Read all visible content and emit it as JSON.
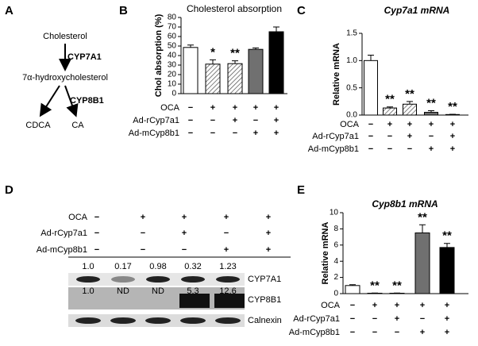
{
  "panel_a": {
    "letter": "A",
    "cholesterol": "Cholesterol",
    "enzyme1": "CYP7A1",
    "intermediate": "7α-hydroxycholesterol",
    "enzyme2": "CYP8B1",
    "product1": "CDCA",
    "product2": "CA"
  },
  "chart_data": [
    {
      "type": "bar",
      "panel": "B",
      "title": "Cholesterol absorption",
      "ylabel": "Chol absorption (%)",
      "categories": [
        null,
        null,
        null,
        null,
        null
      ],
      "values": [
        48.5,
        31,
        31.5,
        46.5,
        65
      ],
      "errors": [
        2.5,
        4.5,
        3,
        1.5,
        5
      ],
      "annotations": [
        null,
        "*",
        "**",
        null,
        null
      ],
      "fills": [
        "#ffffff",
        "hatch",
        "hatch",
        "#707070",
        "#000000"
      ],
      "ylim": [
        0,
        80
      ],
      "yticks": [
        0,
        10,
        20,
        30,
        40,
        50,
        60,
        70,
        80
      ],
      "conditions": [
        {
          "name": "OCA",
          "signs": [
            "−",
            "+",
            "+",
            "+",
            "+"
          ]
        },
        {
          "name": "Ad-rCyp7a1",
          "signs": [
            "−",
            "−",
            "+",
            "−",
            "+"
          ]
        },
        {
          "name": "Ad-mCyp8b1",
          "signs": [
            "−",
            "−",
            "−",
            "+",
            "+"
          ]
        }
      ]
    },
    {
      "type": "bar",
      "panel": "C",
      "title": "Cyp7a1 mRNA",
      "ylabel": "Relative mRNA",
      "categories": [
        null,
        null,
        null,
        null,
        null
      ],
      "values": [
        1.0,
        0.13,
        0.2,
        0.05,
        0.01
      ],
      "errors": [
        0.1,
        0.02,
        0.05,
        0.03,
        0.005
      ],
      "annotations": [
        null,
        "**",
        "**",
        "**",
        "**"
      ],
      "fills": [
        "#ffffff",
        "hatch",
        "hatch",
        "#707070",
        "#000000"
      ],
      "ylim": [
        0,
        1.5
      ],
      "yticks": [
        {
          "value": 0,
          "label": "0.0"
        },
        0.5,
        {
          "value": 1,
          "label": "1.0"
        },
        1.5
      ],
      "conditions": [
        {
          "name": "OCA",
          "signs": [
            "−",
            "+",
            "+",
            "+",
            "+"
          ]
        },
        {
          "name": "Ad-rCyp7a1",
          "signs": [
            "−",
            "−",
            "+",
            "−",
            "+"
          ]
        },
        {
          "name": "Ad-mCyp8b1",
          "signs": [
            "−",
            "−",
            "−",
            "+",
            "+"
          ]
        }
      ]
    },
    {
      "type": "bar",
      "panel": "E",
      "title": "Cyp8b1 mRNA",
      "ylabel": "Relative mRNA",
      "categories": [
        null,
        null,
        null,
        null,
        null
      ],
      "values": [
        1.0,
        0.05,
        0.05,
        7.5,
        5.7
      ],
      "errors": [
        0.1,
        0.02,
        0.02,
        1.0,
        0.5
      ],
      "annotations": [
        null,
        "**",
        "**",
        "**",
        "**"
      ],
      "fills": [
        "#ffffff",
        "hatch",
        "hatch",
        "#707070",
        "#000000"
      ],
      "ylim": [
        0,
        10
      ],
      "yticks": [
        0,
        2,
        4,
        6,
        8,
        10
      ],
      "conditions": [
        {
          "name": "OCA",
          "signs": [
            "−",
            "+",
            "+",
            "+",
            "+"
          ]
        },
        {
          "name": "Ad-rCyp7a1",
          "signs": [
            "−",
            "−",
            "+",
            "−",
            "+"
          ]
        },
        {
          "name": "Ad-mCyp8b1",
          "signs": [
            "−",
            "−",
            "−",
            "+",
            "+"
          ]
        }
      ]
    }
  ],
  "panel_d": {
    "letter": "D",
    "conditions": [
      {
        "name": "OCA",
        "signs": [
          "−",
          "+",
          "+",
          "+",
          "+"
        ]
      },
      {
        "name": "Ad-rCyp7a1",
        "signs": [
          "−",
          "−",
          "+",
          "−",
          "+"
        ]
      },
      {
        "name": "Ad-mCyp8b1",
        "signs": [
          "−",
          "−",
          "−",
          "+",
          "+"
        ]
      }
    ],
    "cyp7a1_ratios": [
      "1.0",
      "0.17",
      "0.98",
      "0.32",
      "1.23"
    ],
    "cyp8b1_ratios": [
      "1.0",
      "ND",
      "ND",
      "5.3",
      "12.6"
    ],
    "blots": [
      "CYP7A1",
      "CYP8B1",
      "Calnexin"
    ]
  }
}
